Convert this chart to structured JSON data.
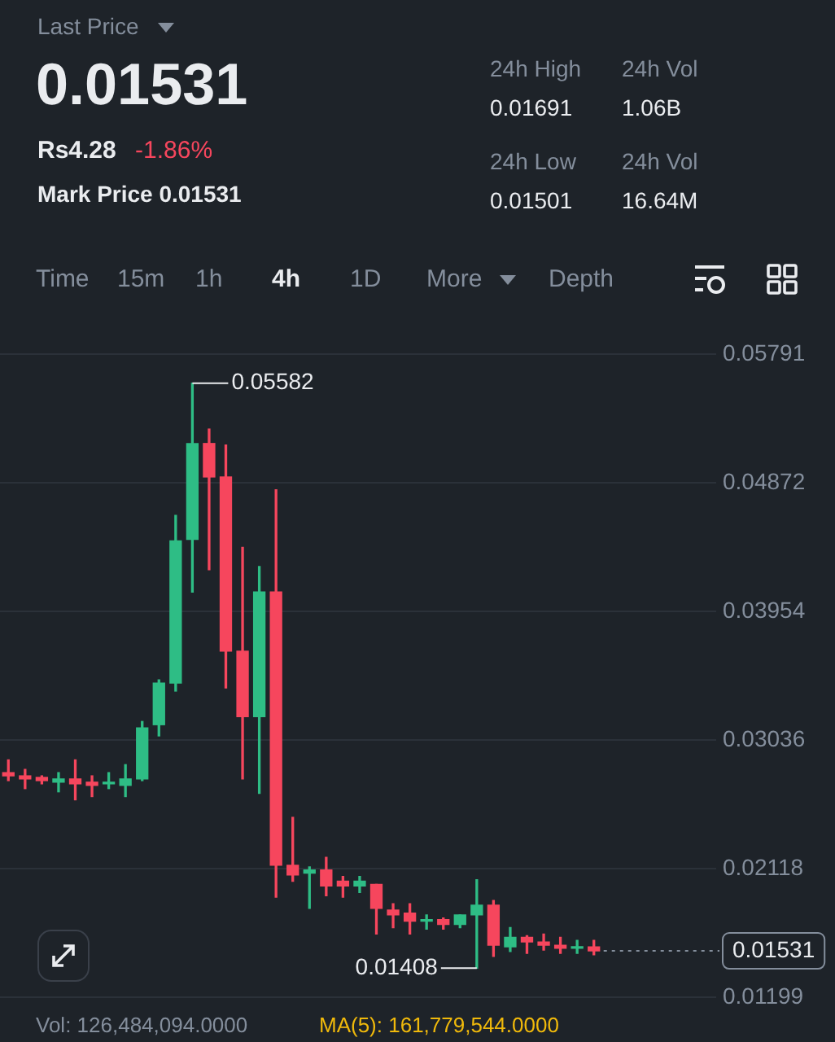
{
  "chart_data": {
    "type": "candlestick",
    "annotations": [
      "Last Price",
      "0.01531",
      "Rs4.28",
      "-1.86%",
      "Mark Price 0.01531",
      "24h High",
      "0.01691",
      "24h Vol",
      "1.06B",
      "24h Low",
      "0.01501",
      "24h Vol",
      "16.64M",
      "Time",
      "15m",
      "1h",
      "4h",
      "1D",
      "More",
      "Depth",
      "Vol: 126,484,094.0000",
      "MA(5): 161,779,544.0000",
      "0.05582",
      "0.01408"
    ],
    "categories": [
      null,
      null,
      null,
      null,
      null,
      null,
      null,
      null,
      null,
      null,
      null,
      null,
      null,
      null,
      null,
      null,
      null,
      null,
      null,
      null,
      null,
      null,
      null,
      null,
      null,
      null,
      null,
      null,
      null,
      null,
      null,
      null,
      null,
      null,
      null,
      null
    ],
    "ohlc": [
      [
        0.02803,
        0.02894,
        0.02746,
        0.0278
      ],
      [
        0.0278,
        0.02826,
        0.02689,
        0.02758
      ],
      [
        0.02769,
        0.0278,
        0.02723,
        0.02746
      ],
      [
        0.02735,
        0.02803,
        0.02666,
        0.02758
      ],
      [
        0.02758,
        0.02894,
        0.02609,
        0.02723
      ],
      [
        0.02735,
        0.0278,
        0.02632,
        0.02712
      ],
      [
        0.02723,
        0.02803,
        0.02689,
        0.02735
      ],
      [
        0.02712,
        0.0286,
        0.02632,
        0.02758
      ],
      [
        0.02758,
        0.03168,
        0.02746,
        0.03122
      ],
      [
        0.03145,
        0.03465,
        0.03065,
        0.03442
      ],
      [
        0.03442,
        0.04639,
        0.03385,
        0.04457
      ],
      [
        0.04468,
        0.05582,
        0.04092,
        0.05152
      ],
      [
        0.05152,
        0.05255,
        0.04251,
        0.04913
      ],
      [
        0.04913,
        0.05141,
        0.03408,
        0.0367
      ],
      [
        0.0367,
        0.04411,
        0.02758,
        0.03202
      ],
      [
        0.03202,
        0.04274,
        0.02655,
        0.04092
      ],
      [
        0.04092,
        0.04822,
        0.01914,
        0.02142
      ],
      [
        0.02142,
        0.02484,
        0.02028,
        0.02073
      ],
      [
        0.02085,
        0.0213,
        0.01834,
        0.02108
      ],
      [
        0.02108,
        0.02199,
        0.01925,
        0.01994
      ],
      [
        0.02028,
        0.02062,
        0.01914,
        0.01994
      ],
      [
        0.01994,
        0.02062,
        0.01948,
        0.02028
      ],
      [
        0.02005,
        0.02005,
        0.01651,
        0.01834
      ],
      [
        0.01822,
        0.01868,
        0.01697,
        0.01788
      ],
      [
        0.018,
        0.01868,
        0.01651,
        0.01743
      ],
      [
        0.01743,
        0.01788,
        0.01686,
        0.01754
      ],
      [
        0.01754,
        0.01765,
        0.01686,
        0.0172
      ],
      [
        0.0172,
        0.01788,
        0.01697,
        0.01788
      ],
      [
        0.01788,
        0.02039,
        0.01408,
        0.01857
      ],
      [
        0.01857,
        0.01891,
        0.01492,
        0.01571
      ],
      [
        0.0156,
        0.01697,
        0.01526,
        0.01628
      ],
      [
        0.01628,
        0.0164,
        0.01514,
        0.01594
      ],
      [
        0.01594,
        0.01651,
        0.01537,
        0.01571
      ],
      [
        0.01571,
        0.01628,
        0.01514,
        0.01549
      ],
      [
        0.01549,
        0.01606,
        0.01514,
        0.0156
      ],
      [
        0.0156,
        0.01606,
        0.01503,
        0.01531
      ]
    ],
    "colors": [
      "#f6465d",
      "#f6465d",
      "#f6465d",
      "#2ebd85",
      "#f6465d",
      "#f6465d",
      "#2ebd85",
      "#2ebd85",
      "#2ebd85",
      "#2ebd85",
      "#2ebd85",
      "#2ebd85",
      "#f6465d",
      "#f6465d",
      "#f6465d",
      "#2ebd85",
      "#f6465d",
      "#f6465d",
      "#2ebd85",
      "#f6465d",
      "#f6465d",
      "#2ebd85",
      "#f6465d",
      "#f6465d",
      "#f6465d",
      "#2ebd85",
      "#f6465d",
      "#2ebd85",
      "#2ebd85",
      "#f6465d",
      "#2ebd85",
      "#f6465d",
      "#f6465d",
      "#f6465d",
      "#2ebd85",
      "#f6465d"
    ],
    "ylim": [
      0.01199,
      0.05791
    ],
    "yticks": [
      0.01199,
      0.02118,
      0.03036,
      0.03954,
      0.04872,
      0.05791
    ],
    "ref_lines": [
      {
        "axis": "y",
        "value": 0.01531,
        "label": "0.01531",
        "line_style": "dotted"
      }
    ],
    "grid": "y",
    "tick_labels": "y"
  }
}
